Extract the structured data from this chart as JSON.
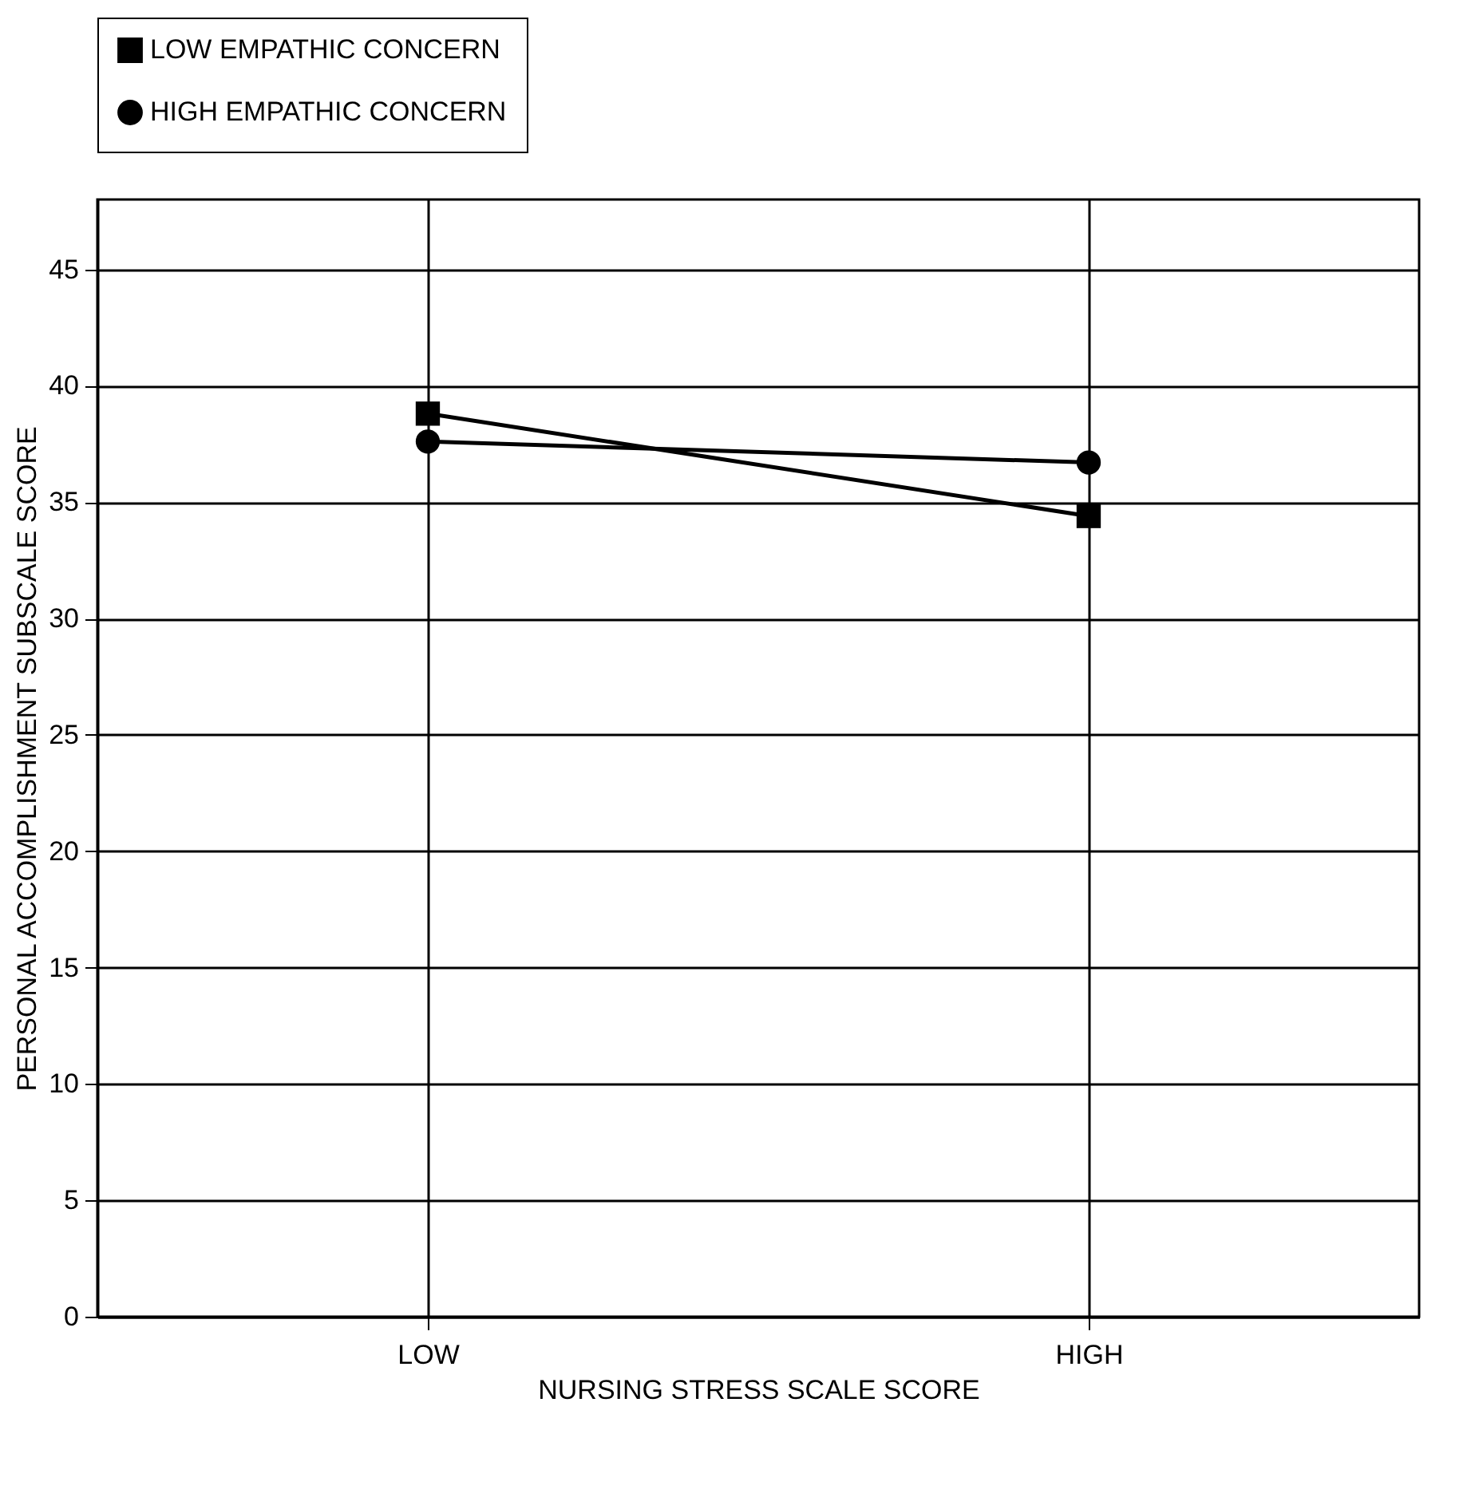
{
  "chart_data": {
    "type": "line",
    "xlabel": "NURSING STRESS SCALE SCORE",
    "ylabel": "PERSONAL ACCOMPLISHMENT SUBSCALE SCORE",
    "categories": [
      "LOW",
      "HIGH"
    ],
    "series": [
      {
        "name": "LOW EMPATHIC CONCERN",
        "color": "#000000",
        "marker": "square",
        "values": [
          38.8,
          34.4
        ]
      },
      {
        "name": "HIGH EMPATHIC CONCERN",
        "color": "#000000",
        "marker": "circle",
        "values": [
          37.6,
          36.7
        ]
      }
    ],
    "ylim": [
      0,
      48
    ],
    "yticks": [
      0,
      5,
      10,
      15,
      20,
      25,
      30,
      35,
      40,
      45
    ],
    "grid": true,
    "legend": "top",
    "line_style": "solid"
  }
}
